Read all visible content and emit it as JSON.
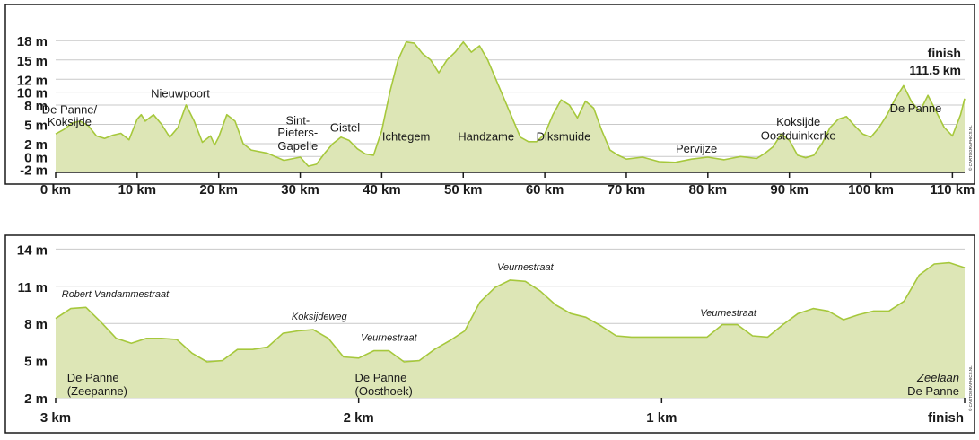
{
  "colors": {
    "fill": "#dde6b6",
    "stroke": "#a6c83c",
    "grid": "#c9c9c9",
    "frame": "#1a1a1a"
  },
  "credit": "© CARTOGRAPHICS.NL",
  "chart_data": [
    {
      "type": "area",
      "title": "",
      "xlabel": "",
      "ylabel": "",
      "xlim": [
        0,
        111.5
      ],
      "ylim": [
        -2,
        20
      ],
      "grid": true,
      "y_ticks": [
        -2,
        0,
        2,
        5,
        8,
        10,
        12,
        15,
        18
      ],
      "y_tick_labels": [
        "-2 m",
        "0 m",
        "2 m",
        "5 m",
        "8 m",
        "10 m",
        "12 m",
        "15 m",
        "18 m"
      ],
      "x_ticks": [
        0,
        10,
        20,
        30,
        40,
        50,
        60,
        70,
        80,
        90,
        100,
        110
      ],
      "x_tick_labels": [
        "0 km",
        "10 km",
        "20 km",
        "30 km",
        "40 km",
        "50 km",
        "60 km",
        "70 km",
        "80 km",
        "90 km",
        "100 km",
        "110 km"
      ],
      "finish": {
        "line1": "finish",
        "line2": "111.5 km"
      },
      "x": [
        0,
        1,
        2,
        3,
        4,
        5,
        6,
        7,
        8,
        9,
        10,
        10.5,
        11,
        12,
        13,
        14,
        15,
        16,
        17,
        18,
        19,
        19.5,
        20,
        21,
        22,
        23,
        24,
        26,
        28,
        30,
        31,
        32,
        33,
        34,
        35,
        36,
        37,
        38,
        39,
        40,
        41,
        42,
        43,
        44,
        45,
        46,
        47,
        48,
        49,
        50,
        51,
        52,
        53,
        54,
        55,
        56,
        57,
        58,
        59,
        60,
        61,
        62,
        63,
        64,
        65,
        66,
        67,
        68,
        69,
        70,
        72,
        74,
        76,
        78,
        80,
        82,
        84,
        86,
        87,
        88,
        89,
        90,
        91,
        92,
        93,
        94,
        95,
        96,
        97,
        98,
        99,
        100,
        101,
        102,
        103,
        104,
        105,
        106,
        107,
        108,
        109,
        110,
        111,
        111.5
      ],
      "y": [
        3.5,
        4.2,
        5.2,
        5.5,
        4.8,
        3.2,
        2.8,
        3.3,
        3.6,
        2.6,
        5.8,
        6.5,
        5.5,
        6.5,
        5.0,
        3.0,
        4.5,
        8.0,
        5.5,
        2.2,
        3.2,
        1.8,
        3.0,
        6.5,
        5.5,
        2.0,
        1.0,
        0.5,
        -0.6,
        -0.1,
        -1.5,
        -1.2,
        0.5,
        2.0,
        3.0,
        2.5,
        1.2,
        0.4,
        0.2,
        4.0,
        10.0,
        15.0,
        17.8,
        17.6,
        16.0,
        15.0,
        13.0,
        15.0,
        16.2,
        17.8,
        16.2,
        17.2,
        15.0,
        12.0,
        9.0,
        6.0,
        3.0,
        2.3,
        2.3,
        3.5,
        6.5,
        8.8,
        8.0,
        6.0,
        8.6,
        7.5,
        4.0,
        1.0,
        0.2,
        -0.4,
        -0.1,
        -0.8,
        -0.9,
        -0.4,
        -0.1,
        -0.5,
        0.0,
        -0.3,
        0.5,
        1.5,
        3.5,
        2.5,
        0.2,
        -0.2,
        0.2,
        2.0,
        4.5,
        5.8,
        6.2,
        4.8,
        3.5,
        3.0,
        4.5,
        6.5,
        9.0,
        11.0,
        8.5,
        7.0,
        9.5,
        7.0,
        4.5,
        3.2,
        6.5,
        9.0
      ]
    },
    {
      "type": "area",
      "title": "",
      "xlabel": "",
      "ylabel": "",
      "xlim": [
        3,
        0
      ],
      "ylim": [
        2,
        14
      ],
      "grid": true,
      "y_ticks": [
        2,
        5,
        8,
        11,
        14
      ],
      "y_tick_labels": [
        "2 m",
        "5 m",
        "8 m",
        "11 m",
        "14 m"
      ],
      "x_ticks": [
        3,
        2,
        1,
        0
      ],
      "x_tick_labels": [
        "3 km",
        "2 km",
        "1 km",
        "finish"
      ],
      "x": [
        3.0,
        2.95,
        2.9,
        2.85,
        2.8,
        2.75,
        2.7,
        2.65,
        2.6,
        2.55,
        2.5,
        2.45,
        2.4,
        2.35,
        2.3,
        2.25,
        2.2,
        2.15,
        2.1,
        2.05,
        2.0,
        1.95,
        1.9,
        1.85,
        1.8,
        1.75,
        1.7,
        1.65,
        1.6,
        1.55,
        1.5,
        1.45,
        1.4,
        1.35,
        1.3,
        1.25,
        1.2,
        1.15,
        1.1,
        1.05,
        1.0,
        0.95,
        0.9,
        0.85,
        0.8,
        0.75,
        0.7,
        0.65,
        0.6,
        0.55,
        0.5,
        0.45,
        0.4,
        0.35,
        0.3,
        0.25,
        0.2,
        0.15,
        0.1,
        0.05,
        0.0
      ],
      "y": [
        8.4,
        9.2,
        9.3,
        8.1,
        6.8,
        6.4,
        6.8,
        6.8,
        6.7,
        5.6,
        4.9,
        5.0,
        5.9,
        5.9,
        6.1,
        7.2,
        7.4,
        7.5,
        6.8,
        5.3,
        5.2,
        5.8,
        5.8,
        4.9,
        5.0,
        5.9,
        6.6,
        7.4,
        9.7,
        10.9,
        11.5,
        11.4,
        10.6,
        9.5,
        8.8,
        8.5,
        7.8,
        7.0,
        6.9,
        6.9,
        6.9,
        6.9,
        6.9,
        6.9,
        7.9,
        7.9,
        7.0,
        6.9,
        7.9,
        8.8,
        9.2,
        9.0,
        8.3,
        8.7,
        9.0,
        9.0,
        9.8,
        11.9,
        12.8,
        12.9,
        12.5
      ]
    }
  ],
  "top_labels": [
    {
      "text": "De Panne/",
      "km": 1.7,
      "m": 6.7
    },
    {
      "text": "Koksijde",
      "km": 1.7,
      "m": 4.8
    },
    {
      "text": "Nieuwpoort",
      "km": 15.3,
      "m": 9.2
    },
    {
      "text": "Sint-",
      "km": 29.7,
      "m": 5.0
    },
    {
      "text": "Pieters-",
      "km": 29.7,
      "m": 3.1
    },
    {
      "text": "Gapelle",
      "km": 29.7,
      "m": 1.0
    },
    {
      "text": "Gistel",
      "km": 35.5,
      "m": 3.9
    },
    {
      "text": "Ichtegem",
      "km": 43.0,
      "m": 2.5
    },
    {
      "text": "Handzame",
      "km": 52.8,
      "m": 2.5
    },
    {
      "text": "Diksmuide",
      "km": 62.3,
      "m": 2.5
    },
    {
      "text": "Pervijze",
      "km": 78.6,
      "m": 0.6
    },
    {
      "text": "Koksijde",
      "km": 91.1,
      "m": 4.8
    },
    {
      "text": "Oostduinkerke",
      "km": 91.1,
      "m": 2.6
    },
    {
      "text": "De Panne",
      "km": 105.5,
      "m": 6.9
    }
  ],
  "bottom_places": [
    {
      "line1": "De Panne",
      "line2": "(Zeepanne)",
      "km": 2.98,
      "align": "start"
    },
    {
      "line1": "De Panne",
      "line2": "(Oosthoek)",
      "km": 2.03,
      "align": "start"
    },
    {
      "line1": "Zeelaan",
      "line2": "De Panne",
      "km": 0.0,
      "align": "end",
      "italic_first": true
    }
  ],
  "streets": [
    {
      "text": "Robert Vandammestraat",
      "km": 2.98,
      "m": 10.1,
      "align": "start"
    },
    {
      "text": "Koksijdeweg",
      "km": 2.13,
      "m": 8.3,
      "align": "middle"
    },
    {
      "text": "Veurnestraat",
      "km": 1.9,
      "m": 6.6,
      "align": "middle"
    },
    {
      "text": "Veurnestraat",
      "km": 1.45,
      "m": 12.3,
      "align": "middle"
    },
    {
      "text": "Veurnestraat",
      "km": 0.78,
      "m": 8.6,
      "align": "middle"
    }
  ]
}
